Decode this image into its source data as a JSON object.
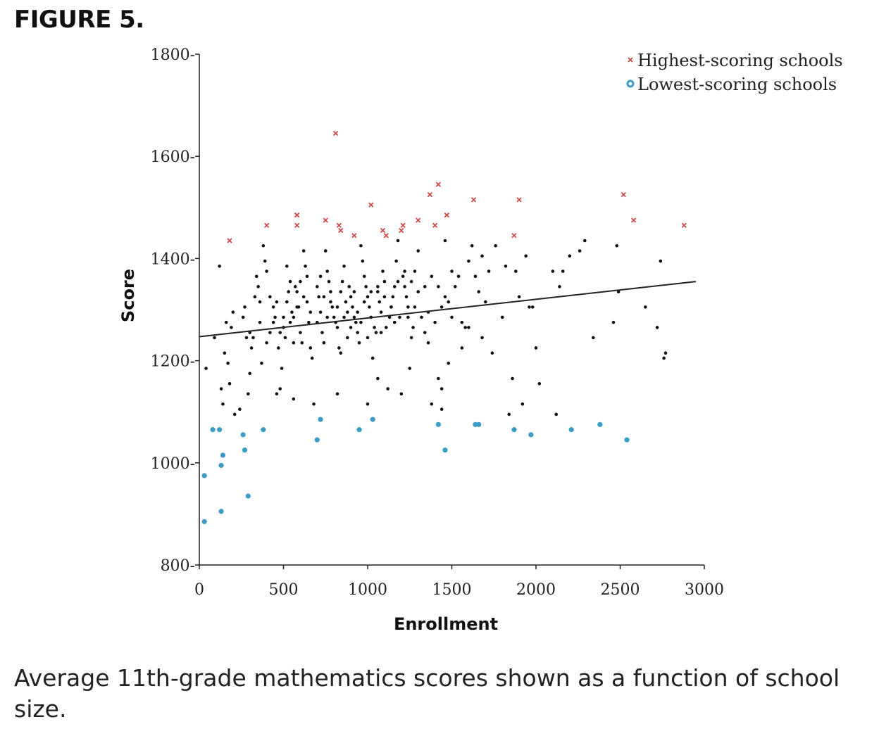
{
  "figure_label": "FIGURE 5.",
  "caption": "Average 11th-grade mathematics scores shown as a function of school size.",
  "colors": {
    "highest": "#cc4a4a",
    "lowest": "#3a9cc4",
    "typical": "#111111",
    "trend": "#222222"
  },
  "chart_data": {
    "type": "scatter",
    "xlabel": "Enrollment",
    "ylabel": "Score",
    "xlim": [
      0,
      3000
    ],
    "ylim": [
      800,
      1800
    ],
    "x_ticks": [
      0,
      500,
      1000,
      1500,
      2000,
      2500,
      3000
    ],
    "y_ticks": [
      800,
      1000,
      1200,
      1400,
      1600,
      1800
    ],
    "x_tick_labels": [
      "0",
      "500",
      "1000",
      "1500",
      "2000",
      "2500",
      "3000"
    ],
    "y_tick_labels": [
      "800-",
      "1000-",
      "1200-",
      "1400-",
      "1600-",
      "1800-"
    ],
    "legend_position": "top-right",
    "series": [
      {
        "name": "Highest-scoring schools",
        "marker": "x",
        "points": [
          [
            810,
            1645
          ],
          [
            1420,
            1545
          ],
          [
            1020,
            1505
          ],
          [
            1370,
            1525
          ],
          [
            1630,
            1515
          ],
          [
            1900,
            1515
          ],
          [
            2520,
            1525
          ],
          [
            2580,
            1475
          ],
          [
            2880,
            1465
          ],
          [
            580,
            1485
          ],
          [
            580,
            1465
          ],
          [
            750,
            1475
          ],
          [
            830,
            1465
          ],
          [
            840,
            1455
          ],
          [
            920,
            1445
          ],
          [
            400,
            1465
          ],
          [
            180,
            1435
          ],
          [
            1090,
            1455
          ],
          [
            1110,
            1445
          ],
          [
            1200,
            1455
          ],
          [
            1210,
            1465
          ],
          [
            1300,
            1475
          ],
          [
            1400,
            1465
          ],
          [
            1470,
            1485
          ],
          [
            1870,
            1445
          ]
        ]
      },
      {
        "name": "Lowest-scoring schools",
        "marker": "o",
        "points": [
          [
            30,
            975
          ],
          [
            30,
            885
          ],
          [
            80,
            1065
          ],
          [
            120,
            1065
          ],
          [
            130,
            905
          ],
          [
            130,
            995
          ],
          [
            140,
            1015
          ],
          [
            260,
            1055
          ],
          [
            270,
            1025
          ],
          [
            290,
            935
          ],
          [
            380,
            1065
          ],
          [
            700,
            1045
          ],
          [
            720,
            1085
          ],
          [
            950,
            1065
          ],
          [
            1030,
            1085
          ],
          [
            1420,
            1075
          ],
          [
            1460,
            1025
          ],
          [
            1640,
            1075
          ],
          [
            1660,
            1075
          ],
          [
            1870,
            1065
          ],
          [
            1970,
            1055
          ],
          [
            2210,
            1065
          ],
          [
            2380,
            1075
          ],
          [
            2540,
            1045
          ]
        ]
      },
      {
        "name": "",
        "marker": "dot",
        "points": [
          [
            40,
            1185
          ],
          [
            90,
            1245
          ],
          [
            120,
            1385
          ],
          [
            130,
            1145
          ],
          [
            140,
            1115
          ],
          [
            150,
            1215
          ],
          [
            160,
            1275
          ],
          [
            170,
            1195
          ],
          [
            180,
            1155
          ],
          [
            190,
            1265
          ],
          [
            200,
            1295
          ],
          [
            210,
            1095
          ],
          [
            240,
            1105
          ],
          [
            260,
            1285
          ],
          [
            270,
            1305
          ],
          [
            280,
            1245
          ],
          [
            290,
            1135
          ],
          [
            300,
            1175
          ],
          [
            310,
            1225
          ],
          [
            320,
            1245
          ],
          [
            330,
            1325
          ],
          [
            340,
            1365
          ],
          [
            350,
            1345
          ],
          [
            360,
            1275
          ],
          [
            370,
            1195
          ],
          [
            380,
            1425
          ],
          [
            390,
            1395
          ],
          [
            400,
            1375
          ],
          [
            420,
            1325
          ],
          [
            440,
            1305
          ],
          [
            450,
            1285
          ],
          [
            470,
            1225
          ],
          [
            480,
            1145
          ],
          [
            490,
            1185
          ],
          [
            500,
            1265
          ],
          [
            510,
            1245
          ],
          [
            520,
            1315
          ],
          [
            530,
            1335
          ],
          [
            540,
            1355
          ],
          [
            550,
            1295
          ],
          [
            560,
            1285
          ],
          [
            570,
            1345
          ],
          [
            580,
            1335
          ],
          [
            590,
            1305
          ],
          [
            600,
            1255
          ],
          [
            610,
            1235
          ],
          [
            620,
            1415
          ],
          [
            630,
            1385
          ],
          [
            640,
            1365
          ],
          [
            650,
            1275
          ],
          [
            660,
            1225
          ],
          [
            670,
            1205
          ],
          [
            680,
            1115
          ],
          [
            700,
            1345
          ],
          [
            710,
            1325
          ],
          [
            720,
            1295
          ],
          [
            730,
            1255
          ],
          [
            740,
            1235
          ],
          [
            750,
            1415
          ],
          [
            760,
            1375
          ],
          [
            770,
            1355
          ],
          [
            780,
            1335
          ],
          [
            790,
            1305
          ],
          [
            800,
            1285
          ],
          [
            810,
            1275
          ],
          [
            820,
            1265
          ],
          [
            830,
            1225
          ],
          [
            840,
            1215
          ],
          [
            850,
            1355
          ],
          [
            860,
            1385
          ],
          [
            870,
            1315
          ],
          [
            880,
            1295
          ],
          [
            890,
            1345
          ],
          [
            900,
            1325
          ],
          [
            910,
            1305
          ],
          [
            920,
            1285
          ],
          [
            930,
            1275
          ],
          [
            940,
            1255
          ],
          [
            950,
            1235
          ],
          [
            960,
            1425
          ],
          [
            970,
            1395
          ],
          [
            980,
            1365
          ],
          [
            990,
            1345
          ],
          [
            1000,
            1325
          ],
          [
            1010,
            1305
          ],
          [
            1020,
            1285
          ],
          [
            1030,
            1205
          ],
          [
            1040,
            1265
          ],
          [
            1050,
            1255
          ],
          [
            1060,
            1335
          ],
          [
            1070,
            1315
          ],
          [
            1080,
            1295
          ],
          [
            1090,
            1375
          ],
          [
            1100,
            1355
          ],
          [
            1110,
            1265
          ],
          [
            1120,
            1145
          ],
          [
            1130,
            1285
          ],
          [
            1140,
            1305
          ],
          [
            1150,
            1325
          ],
          [
            1160,
            1345
          ],
          [
            1170,
            1395
          ],
          [
            1180,
            1435
          ],
          [
            1190,
            1285
          ],
          [
            1200,
            1135
          ],
          [
            1210,
            1365
          ],
          [
            1220,
            1345
          ],
          [
            1230,
            1325
          ],
          [
            1240,
            1305
          ],
          [
            1250,
            1185
          ],
          [
            1260,
            1245
          ],
          [
            1270,
            1265
          ],
          [
            1280,
            1375
          ],
          [
            1300,
            1415
          ],
          [
            1320,
            1285
          ],
          [
            1340,
            1255
          ],
          [
            1360,
            1235
          ],
          [
            1380,
            1115
          ],
          [
            1400,
            1275
          ],
          [
            1420,
            1165
          ],
          [
            1440,
            1105
          ],
          [
            1460,
            1435
          ],
          [
            1480,
            1315
          ],
          [
            1500,
            1285
          ],
          [
            1520,
            1345
          ],
          [
            1540,
            1365
          ],
          [
            1560,
            1275
          ],
          [
            1580,
            1265
          ],
          [
            1600,
            1395
          ],
          [
            1620,
            1425
          ],
          [
            1640,
            1365
          ],
          [
            1660,
            1335
          ],
          [
            1680,
            1405
          ],
          [
            1700,
            1315
          ],
          [
            1720,
            1375
          ],
          [
            1740,
            1215
          ],
          [
            1760,
            1425
          ],
          [
            1800,
            1285
          ],
          [
            1820,
            1385
          ],
          [
            1840,
            1095
          ],
          [
            1860,
            1165
          ],
          [
            1880,
            1375
          ],
          [
            1900,
            1325
          ],
          [
            1920,
            1115
          ],
          [
            1940,
            1405
          ],
          [
            1960,
            1305
          ],
          [
            1980,
            1305
          ],
          [
            2000,
            1225
          ],
          [
            2020,
            1155
          ],
          [
            2100,
            1375
          ],
          [
            2120,
            1095
          ],
          [
            2140,
            1345
          ],
          [
            2160,
            1375
          ],
          [
            2200,
            1405
          ],
          [
            2260,
            1415
          ],
          [
            2290,
            1435
          ],
          [
            2340,
            1245
          ],
          [
            2460,
            1275
          ],
          [
            2480,
            1425
          ],
          [
            2490,
            1335
          ],
          [
            2650,
            1305
          ],
          [
            2720,
            1265
          ],
          [
            2740,
            1395
          ],
          [
            2760,
            1205
          ],
          [
            2770,
            1215
          ],
          [
            420,
            1255
          ],
          [
            460,
            1315
          ],
          [
            500,
            1285
          ],
          [
            540,
            1275
          ],
          [
            580,
            1305
          ],
          [
            620,
            1325
          ],
          [
            660,
            1295
          ],
          [
            700,
            1275
          ],
          [
            740,
            1325
          ],
          [
            780,
            1315
          ],
          [
            820,
            1305
          ],
          [
            860,
            1285
          ],
          [
            900,
            1265
          ],
          [
            940,
            1295
          ],
          [
            980,
            1315
          ],
          [
            1020,
            1335
          ],
          [
            1060,
            1345
          ],
          [
            1100,
            1325
          ],
          [
            1140,
            1305
          ],
          [
            1180,
            1355
          ],
          [
            1220,
            1375
          ],
          [
            1260,
            1355
          ],
          [
            1300,
            1335
          ],
          [
            1340,
            1345
          ],
          [
            1380,
            1365
          ],
          [
            1420,
            1345
          ],
          [
            1460,
            1325
          ],
          [
            880,
            1245
          ],
          [
            920,
            1335
          ],
          [
            760,
            1285
          ],
          [
            640,
            1315
          ],
          [
            560,
            1235
          ],
          [
            480,
            1255
          ],
          [
            440,
            1275
          ],
          [
            400,
            1235
          ],
          [
            360,
            1315
          ],
          [
            300,
            1255
          ],
          [
            1500,
            1375
          ],
          [
            1440,
            1305
          ],
          [
            1360,
            1295
          ],
          [
            1280,
            1305
          ],
          [
            1240,
            1285
          ],
          [
            1160,
            1275
          ],
          [
            1080,
            1255
          ],
          [
            1000,
            1245
          ],
          [
            960,
            1275
          ],
          [
            840,
            1335
          ],
          [
            720,
            1365
          ],
          [
            600,
            1355
          ],
          [
            520,
            1385
          ],
          [
            1600,
            1265
          ],
          [
            1680,
            1245
          ],
          [
            1560,
            1225
          ],
          [
            1480,
            1195
          ],
          [
            1440,
            1145
          ],
          [
            1060,
            1165
          ],
          [
            1000,
            1115
          ],
          [
            820,
            1135
          ],
          [
            560,
            1125
          ],
          [
            460,
            1135
          ]
        ]
      }
    ],
    "trend_line": [
      [
        0,
        1247
      ],
      [
        2950,
        1355
      ]
    ]
  }
}
